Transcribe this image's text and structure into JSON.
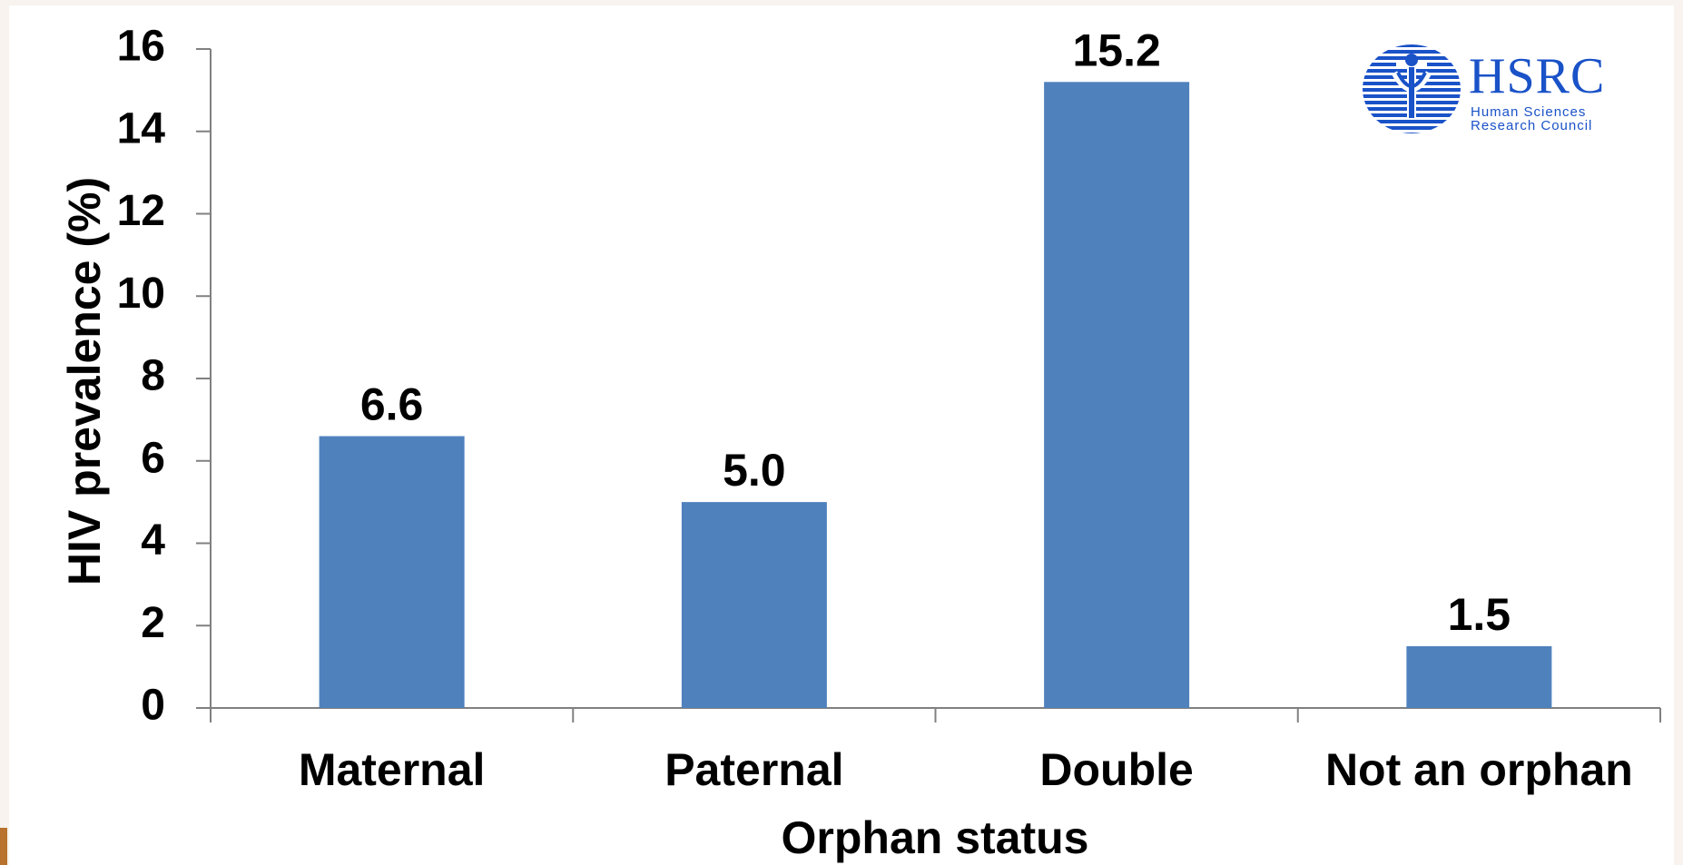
{
  "chart_data": {
    "type": "bar",
    "categories": [
      "Maternal",
      "Paternal",
      "Double",
      "Not an orphan"
    ],
    "values": [
      6.6,
      5.0,
      15.2,
      1.5
    ],
    "value_labels": [
      "6.6",
      "5.0",
      "15.2",
      "1.5"
    ],
    "xlabel": "Orphan status",
    "ylabel": "HIV prevalence (%)",
    "ylim": [
      0,
      16
    ],
    "yticks": [
      0,
      2,
      4,
      6,
      8,
      10,
      12,
      14,
      16
    ],
    "grid": false,
    "bar_color": "#4f81bd"
  },
  "logo": {
    "name": "HSRC",
    "line1": "Human Sciences",
    "line2": "Research Council",
    "color": "#1a52c8",
    "icon": "hsrc-globe-icon"
  }
}
